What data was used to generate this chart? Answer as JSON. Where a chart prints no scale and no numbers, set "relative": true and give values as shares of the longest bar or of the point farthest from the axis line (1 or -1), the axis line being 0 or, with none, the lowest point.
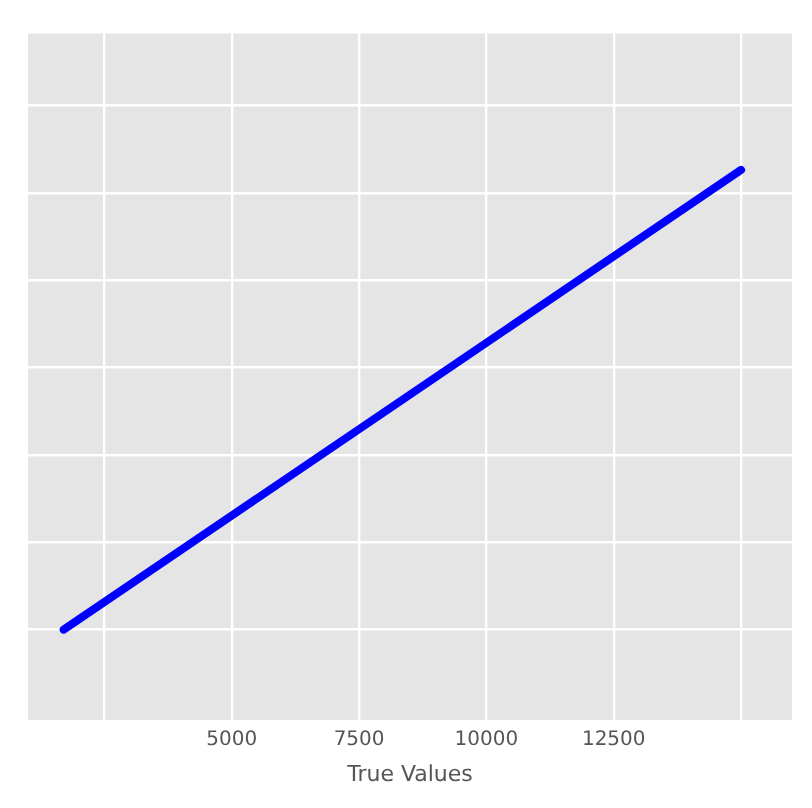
{
  "chart_data": {
    "type": "line",
    "xlabel": "True Values",
    "relative": true,
    "x": [
      1700,
      15000
    ],
    "series": [
      {
        "color": "#0000ff",
        "values": [
          0,
          1
        ]
      }
    ],
    "xlim": [
      1000,
      16000
    ],
    "xticks": [
      {
        "value": 2500,
        "label": null
      },
      5000,
      7500,
      10000,
      12500,
      {
        "value": 15000,
        "label": null
      }
    ],
    "grid": true,
    "legend": false,
    "marker": "none",
    "line_style": "solid"
  }
}
